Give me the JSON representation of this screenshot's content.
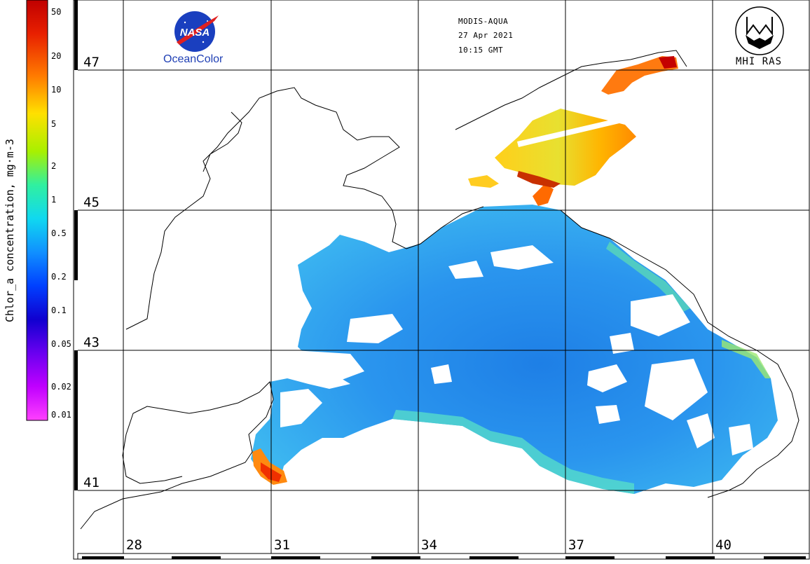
{
  "header": {
    "satellite": "MODIS-AQUA",
    "date": "27 Apr 2021",
    "time": "10:15 GMT"
  },
  "logos": {
    "nasa_caption": "OceanColor",
    "nasa_wordmark": "NASA",
    "mhi_caption": "MHI RAS"
  },
  "legend": {
    "title": "Chlor_a concentration, mg·m-3",
    "scale": "log",
    "ticks": [
      "50",
      "20",
      "10",
      "5",
      "2",
      "1",
      "0.5",
      "0.2",
      "0.1",
      "0.05",
      "0.02",
      "0.01"
    ],
    "colors": [
      "#d40000",
      "#ff6a00",
      "#ffd000",
      "#c8f000",
      "#40f080",
      "#20e0e0",
      "#1890ff",
      "#0050ff",
      "#1000d0",
      "#7000ff",
      "#d000ff",
      "#ff40ff"
    ]
  },
  "map": {
    "latitudes": [
      "47",
      "45",
      "43",
      "41"
    ],
    "longitudes": [
      "28",
      "31",
      "34",
      "37",
      "40"
    ],
    "land_color": "#ffffff",
    "coast_color": "#000000"
  }
}
